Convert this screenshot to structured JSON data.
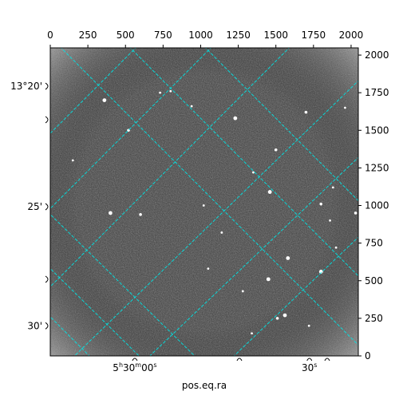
{
  "chart_data": {
    "type": "image",
    "xlabel": "pos.eq.ra",
    "pixel_x": {
      "ticks": [
        0,
        250,
        500,
        750,
        1000,
        1250,
        1500,
        1750,
        2000
      ],
      "range": [
        0,
        2048
      ]
    },
    "pixel_y": {
      "ticks": [
        0,
        250,
        500,
        750,
        1000,
        1250,
        1500,
        1750,
        2000
      ],
      "range": [
        0,
        2048
      ]
    },
    "ra_ticks": [
      {
        "label": "5h30m00s",
        "main": "5",
        "h": "h",
        "mid": "30",
        "m": "m",
        "sec": "00",
        "s": "s",
        "px": 562
      },
      {
        "label": "30s",
        "main": "30",
        "s": "s",
        "px": 1723
      }
    ],
    "dec_ticks": [
      {
        "label": "13°20'",
        "py": 1793
      },
      {
        "label": "25'",
        "py": 992
      },
      {
        "label": "30'",
        "py": 200
      }
    ],
    "grid": true,
    "colors": {
      "grid": "#00e5e5",
      "background": "#3c3c3c"
    },
    "colormap": "gray",
    "stars": [
      [
        1230,
        1580
      ],
      [
        800,
        1760
      ],
      [
        940,
        1660
      ],
      [
        1700,
        1620
      ],
      [
        360,
        1700
      ],
      [
        1960,
        1650
      ],
      [
        1500,
        1370
      ],
      [
        1350,
        1220
      ],
      [
        1460,
        1090
      ],
      [
        1800,
        1010
      ],
      [
        1880,
        1120
      ],
      [
        1140,
        820
      ],
      [
        1580,
        650
      ],
      [
        1900,
        720
      ],
      [
        1020,
        1000
      ],
      [
        600,
        940
      ],
      [
        400,
        950
      ],
      [
        150,
        1300
      ],
      [
        520,
        1500
      ],
      [
        1280,
        430
      ],
      [
        1560,
        270
      ],
      [
        1510,
        250
      ],
      [
        1720,
        200
      ],
      [
        1340,
        150
      ],
      [
        1450,
        510
      ],
      [
        1050,
        580
      ],
      [
        1860,
        900
      ],
      [
        2030,
        950
      ],
      [
        1800,
        560
      ],
      [
        730,
        1750
      ]
    ]
  }
}
